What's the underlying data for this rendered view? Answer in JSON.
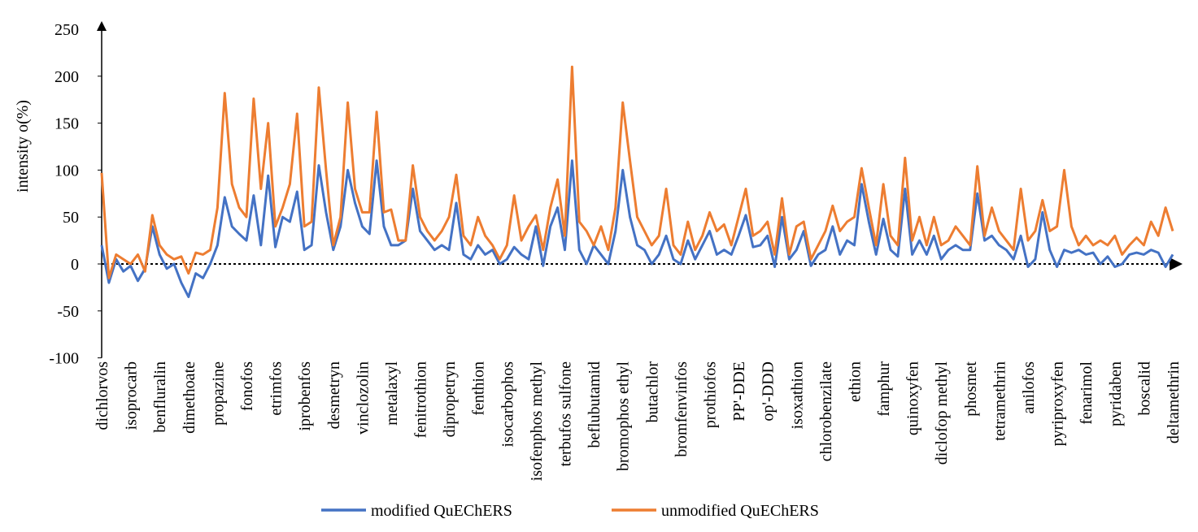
{
  "chart_data": {
    "type": "line",
    "y_label": "intensity o(%)",
    "ylim": [
      -100,
      250
    ],
    "yticks": [
      -100,
      -50,
      0,
      50,
      100,
      150,
      200,
      250
    ],
    "categories": [
      "dichlorvos",
      null,
      null,
      null,
      "isoprocarb",
      null,
      null,
      null,
      "benfluralin",
      null,
      null,
      null,
      "dimethoate",
      null,
      null,
      null,
      "propazine",
      null,
      null,
      null,
      "fonofos",
      null,
      null,
      null,
      "etrimfos",
      null,
      null,
      null,
      "iprobenfos",
      null,
      null,
      null,
      "desmetryn",
      null,
      null,
      null,
      "vinclozolin",
      null,
      null,
      null,
      "metalaxyl",
      null,
      null,
      null,
      "fenitrothion",
      null,
      null,
      null,
      "dipropetryn",
      null,
      null,
      null,
      "fenthion",
      null,
      null,
      null,
      "isocarbophos",
      null,
      null,
      null,
      "isofenphos methyl",
      null,
      null,
      null,
      "terbufos sulfone",
      null,
      null,
      null,
      "beflubutamid",
      null,
      null,
      null,
      "bromophos ethyl",
      null,
      null,
      null,
      "butachlor",
      null,
      null,
      null,
      "bromfenvinfos",
      null,
      null,
      null,
      "prothiofos",
      null,
      null,
      null,
      "PP'-DDE",
      null,
      null,
      null,
      "op'-DDD",
      null,
      null,
      null,
      "isoxathion",
      null,
      null,
      null,
      "chlorobenzilate",
      null,
      null,
      null,
      "ethion",
      null,
      null,
      null,
      "famphur",
      null,
      null,
      null,
      "quinoxyfen",
      null,
      null,
      null,
      "diclofop methyl",
      null,
      null,
      null,
      "phosmet",
      null,
      null,
      null,
      "tetramethrin",
      null,
      null,
      null,
      "anilofos",
      null,
      null,
      null,
      "pyriproxyfen",
      null,
      null,
      null,
      "fenarimol",
      null,
      null,
      null,
      "pyridaben",
      null,
      null,
      null,
      "boscalid",
      null,
      null,
      null,
      "deltamethrin"
    ],
    "series": [
      {
        "name": "modified QuEChERS",
        "color": "#4472c4",
        "values": [
          20,
          -20,
          5,
          -8,
          -2,
          -18,
          -5,
          40,
          10,
          -5,
          0,
          -20,
          -35,
          -10,
          -15,
          0,
          20,
          71,
          40,
          32,
          25,
          73,
          20,
          94,
          18,
          50,
          45,
          77,
          15,
          20,
          105,
          55,
          15,
          40,
          100,
          65,
          40,
          32,
          110,
          40,
          20,
          20,
          25,
          80,
          35,
          25,
          15,
          20,
          15,
          65,
          10,
          5,
          20,
          10,
          15,
          0,
          5,
          18,
          10,
          5,
          40,
          -2,
          40,
          60,
          15,
          110,
          15,
          0,
          20,
          10,
          0,
          35,
          100,
          50,
          20,
          15,
          0,
          10,
          30,
          5,
          0,
          25,
          5,
          20,
          35,
          10,
          15,
          10,
          30,
          52,
          18,
          20,
          30,
          -3,
          50,
          5,
          15,
          35,
          -2,
          10,
          15,
          40,
          10,
          25,
          20,
          85,
          45,
          10,
          48,
          15,
          8,
          80,
          10,
          25,
          10,
          30,
          5,
          15,
          20,
          15,
          15,
          75,
          25,
          30,
          20,
          15,
          5,
          30,
          -3,
          5,
          55,
          15,
          -3,
          15,
          12,
          15,
          10,
          12,
          0,
          8,
          -3,
          0,
          10,
          12,
          10,
          15,
          12,
          -3,
          10
        ]
      },
      {
        "name": "unmodified QuEChERS",
        "color": "#ed7d31",
        "values": [
          97,
          -15,
          10,
          5,
          0,
          10,
          -8,
          52,
          20,
          10,
          5,
          8,
          -10,
          12,
          10,
          15,
          60,
          182,
          85,
          60,
          50,
          176,
          80,
          150,
          40,
          60,
          85,
          160,
          40,
          45,
          188,
          100,
          20,
          50,
          172,
          80,
          55,
          55,
          162,
          55,
          58,
          25,
          25,
          105,
          50,
          35,
          25,
          35,
          50,
          95,
          30,
          20,
          50,
          30,
          20,
          5,
          20,
          73,
          25,
          40,
          52,
          15,
          60,
          90,
          30,
          210,
          45,
          35,
          20,
          40,
          15,
          60,
          172,
          110,
          50,
          35,
          20,
          30,
          80,
          20,
          10,
          45,
          15,
          30,
          55,
          35,
          42,
          20,
          50,
          80,
          30,
          35,
          45,
          10,
          70,
          10,
          40,
          45,
          5,
          20,
          35,
          62,
          35,
          45,
          50,
          102,
          60,
          20,
          85,
          30,
          20,
          113,
          25,
          50,
          20,
          50,
          20,
          25,
          40,
          30,
          20,
          104,
          30,
          60,
          35,
          25,
          15,
          80,
          25,
          35,
          68,
          35,
          40,
          100,
          40,
          20,
          30,
          20,
          25,
          20,
          30,
          10,
          20,
          28,
          20,
          45,
          30,
          60,
          35
        ]
      }
    ]
  }
}
